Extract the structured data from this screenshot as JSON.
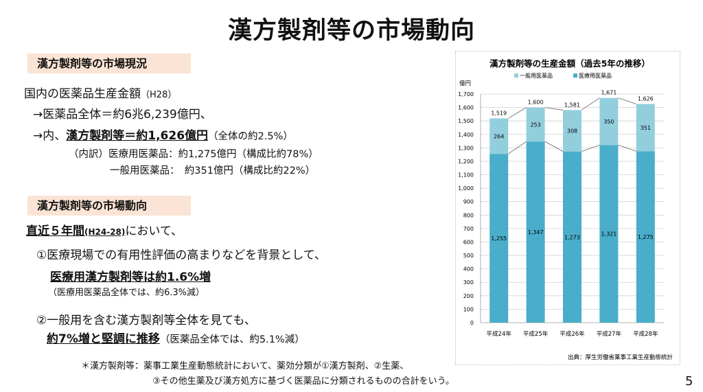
{
  "title": "漢方製剤等の市場動向",
  "section1": {
    "header": "漢方製剤等の市場現況",
    "line1": "国内の医薬品生産金額",
    "line1_note": "（H28）",
    "line2": "→医薬品全体＝約6兆6,239億円、",
    "line3_pre": "→内、",
    "line3_bold": "漢方製剤等＝約1,626億円",
    "line3_note": "（全体の約2.5%）",
    "line4": "（内訳）医療用医薬品：約1,275億円（構成比約78%）",
    "line5": "一般用医薬品：　約351億円（構成比約22%）"
  },
  "section2": {
    "header": "漢方製剤等の市場動向",
    "line1_bold": "直近５年間",
    "line1_small": "(H24-28)",
    "line1_rest": "において、",
    "line2": "①医療現場での有用性評価の高まりなどを背景として、",
    "line3": "医療用漢方製剤等は約1.6%増",
    "line4": "（医療用医薬品全体では、約6.3%減）",
    "line5": "②一般用を含む漢方製剤等全体を見ても、",
    "line6_bold": "約7%増と堅調に推移",
    "line6_note": "（医薬品全体では、約5.1%減）"
  },
  "footnote": {
    "line1": "＊漢方製剤等：薬事工業生産動態統計において、薬効分類が①漢方製剤、②生薬、",
    "line2": "③その他生薬及び漢方処方に基づく医薬品に分類されるものの合計をいう。"
  },
  "page_number": "5",
  "chart_data": {
    "type": "bar",
    "stacked": true,
    "title": "漢方製剤等の生産金額（過去5年の推移）",
    "ylabel": "億円",
    "ylim": [
      0,
      1700
    ],
    "yticks": [
      "0",
      "100",
      "200",
      "300",
      "400",
      "500",
      "600",
      "700",
      "800",
      "900",
      "1,000",
      "1,100",
      "1,200",
      "1,300",
      "1,400",
      "1,500",
      "1,600",
      "1,700"
    ],
    "categories": [
      "平成24年",
      "平成25年",
      "平成26年",
      "平成27年",
      "平成28年"
    ],
    "series": [
      {
        "name": "医療用医薬品",
        "values": [
          1255,
          1347,
          1273,
          1321,
          1275
        ],
        "labels": [
          "1,255",
          "1,347",
          "1,273",
          "1,321",
          "1,275"
        ],
        "color": "#4aadca"
      },
      {
        "name": "一般用医薬品",
        "values": [
          264,
          253,
          308,
          350,
          351
        ],
        "labels": [
          "264",
          "253",
          "308",
          "350",
          "351"
        ],
        "color": "#93cedd"
      }
    ],
    "totals": [
      "1,519",
      "1,600",
      "1,581",
      "1,671",
      "1,626"
    ],
    "legend_position": "top",
    "source": "出典：厚生労働省薬事工業生産動態統計"
  }
}
